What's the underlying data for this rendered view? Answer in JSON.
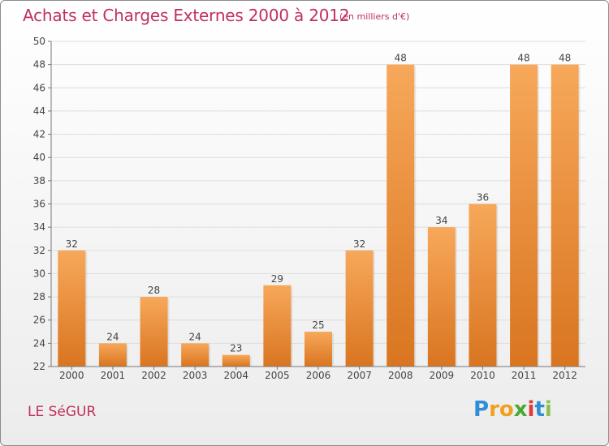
{
  "header": {
    "title": "Achats et Charges Externes 2000 à 2012",
    "unit": "(en milliers d'€)"
  },
  "footer": {
    "commune": "LE SéGUR",
    "logo_letters": [
      "P",
      "r",
      "o",
      "x",
      "i",
      "t",
      "i"
    ]
  },
  "colors": {
    "title": "#c0305a",
    "bar_light": "#f7a85a",
    "bar_dark": "#d97520",
    "axis": "#555555"
  },
  "chart_data": {
    "type": "bar",
    "categories": [
      "2000",
      "2001",
      "2002",
      "2003",
      "2004",
      "2005",
      "2006",
      "2007",
      "2008",
      "2009",
      "2010",
      "2011",
      "2012"
    ],
    "values": [
      32,
      24,
      28,
      24,
      23,
      29,
      25,
      32,
      48,
      34,
      36,
      48,
      48
    ],
    "ylim": [
      22,
      50
    ],
    "yticks": [
      22,
      24,
      26,
      28,
      30,
      32,
      34,
      36,
      38,
      40,
      42,
      44,
      46,
      48,
      50
    ],
    "grid": true
  }
}
